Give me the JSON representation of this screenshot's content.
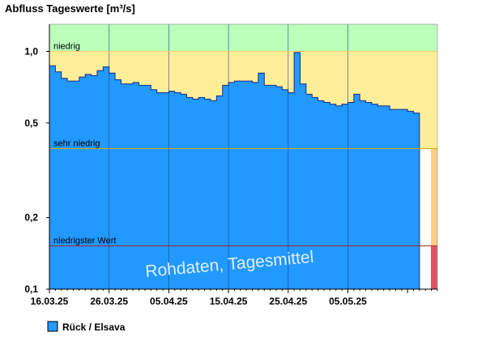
{
  "chart_data": {
    "type": "area",
    "title": "Abfluss Tageswerte [m³/s]",
    "y_scale": "log",
    "ylim": [
      0.1,
      1.3
    ],
    "y_ticks": [
      {
        "value": 1.0,
        "label": "1,0"
      },
      {
        "value": 0.5,
        "label": "0,5"
      },
      {
        "value": 0.2,
        "label": "0,2"
      },
      {
        "value": 0.1,
        "label": "0,1"
      }
    ],
    "x_ticks": [
      "16.03.25",
      "26.03.25",
      "05.04.25",
      "15.04.25",
      "25.04.25",
      "05.05.25"
    ],
    "x_start": "2025-03-16",
    "series": [
      {
        "name": "Rück / Elsava",
        "color": "#2299ff",
        "values": [
          0.87,
          0.82,
          0.77,
          0.75,
          0.75,
          0.78,
          0.8,
          0.79,
          0.83,
          0.86,
          0.81,
          0.76,
          0.73,
          0.73,
          0.74,
          0.72,
          0.72,
          0.69,
          0.67,
          0.67,
          0.68,
          0.67,
          0.66,
          0.64,
          0.63,
          0.64,
          0.63,
          0.62,
          0.65,
          0.72,
          0.74,
          0.75,
          0.75,
          0.75,
          0.74,
          0.81,
          0.72,
          0.72,
          0.71,
          0.69,
          0.67,
          0.99,
          0.73,
          0.66,
          0.64,
          0.62,
          0.61,
          0.6,
          0.59,
          0.6,
          0.61,
          0.66,
          0.62,
          0.61,
          0.6,
          0.59,
          0.59,
          0.57,
          0.57,
          0.57,
          0.56,
          0.55
        ]
      }
    ],
    "thresholds": [
      {
        "label": "niedrig",
        "value": 1.0,
        "band_color": "#bbffbb",
        "line_color": "#ffcc66"
      },
      {
        "label": "sehr niedrig",
        "value": 0.39,
        "band_color": "#ffee99",
        "line_color": "#ddaa00"
      },
      {
        "label": "niedrigster Wert",
        "value": 0.152,
        "band_color": "#ffdd99",
        "line_color": "#aa2222"
      }
    ],
    "right_strip_colors": [
      "#ffcc88",
      "#dd5566"
    ],
    "grid": "vertical lines at date ticks",
    "legend": "bottom-left",
    "watermark": "Rohdaten, Tagesmittel"
  }
}
